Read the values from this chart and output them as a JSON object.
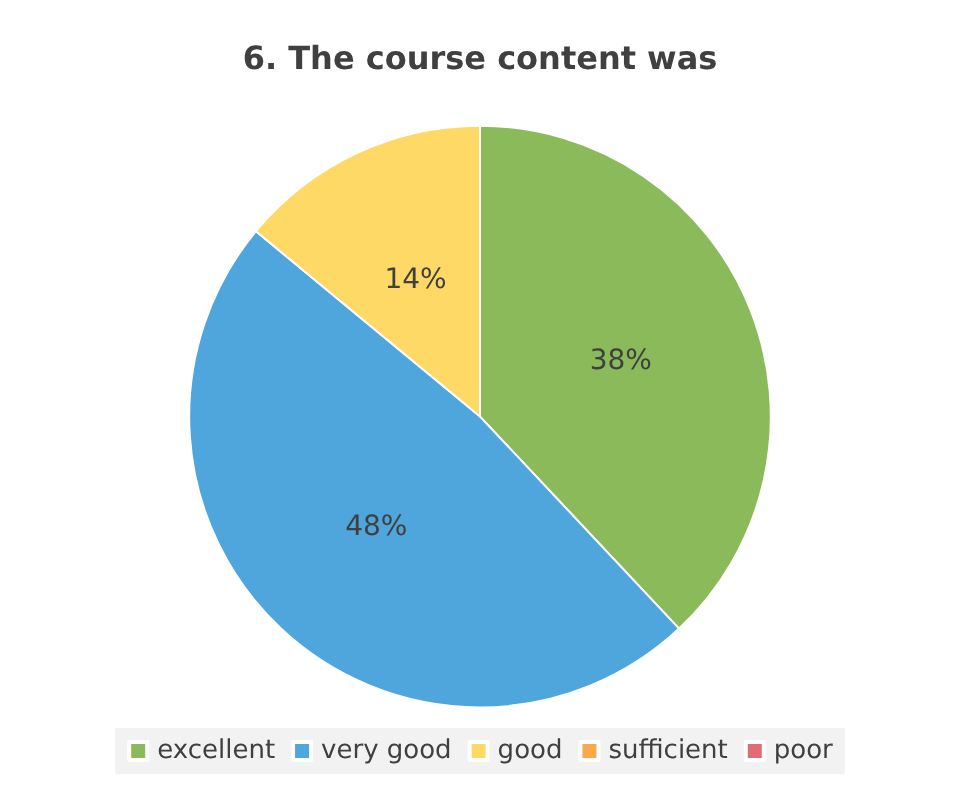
{
  "chart_data": {
    "type": "pie",
    "title": "6. The course content was",
    "categories": [
      "excellent",
      "very good",
      "good",
      "sufficient",
      "poor"
    ],
    "values": [
      38,
      48,
      14,
      0,
      0
    ],
    "colors": [
      "#8aba5a",
      "#4ea6dc",
      "#ffd966",
      "#f8a94a",
      "#e06c75"
    ],
    "value_labels": [
      "38%",
      "48%",
      "14%",
      null,
      null
    ],
    "legend": "bottom"
  }
}
